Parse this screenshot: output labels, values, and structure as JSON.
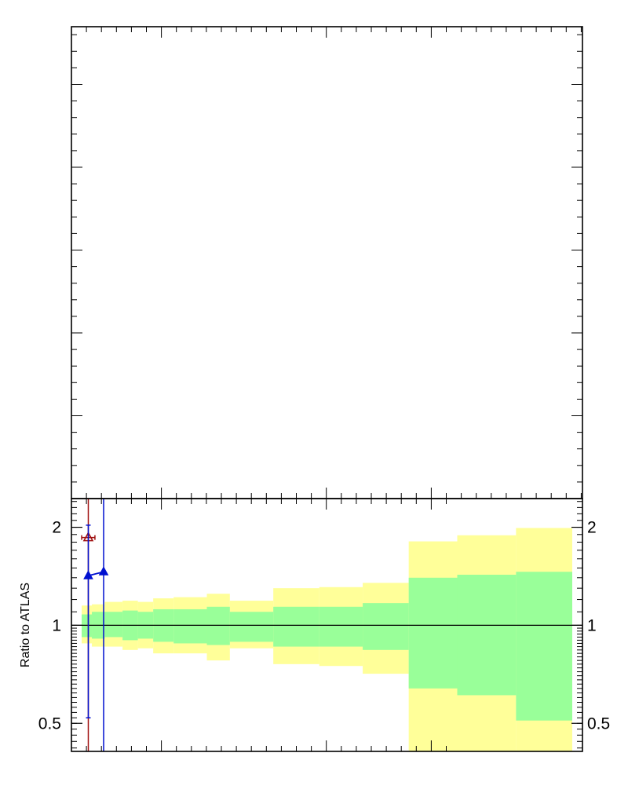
{
  "chart_data": [
    {
      "type": "line",
      "panel": "main",
      "title": "",
      "xlabel": "",
      "ylabel": "",
      "series": []
    },
    {
      "type": "area",
      "panel": "ratio",
      "ylabel": "Ratio to ATLAS",
      "yscale": "log",
      "ylim": [
        0.41,
        2.45
      ],
      "yticks": [
        {
          "v": 0.5,
          "label": "0.5"
        },
        {
          "v": 1,
          "label": "1"
        },
        {
          "v": 2,
          "label": "2"
        }
      ],
      "xlim": [
        0,
        100
      ],
      "reference_line": 1,
      "bins": [
        {
          "x0": 2,
          "x1": 4,
          "inner": [
            0.92,
            1.08
          ],
          "outer": [
            0.88,
            1.15
          ]
        },
        {
          "x0": 4,
          "x1": 6.5,
          "inner": [
            0.91,
            1.1
          ],
          "outer": [
            0.86,
            1.16
          ]
        },
        {
          "x0": 6.5,
          "x1": 10,
          "inner": [
            0.92,
            1.1
          ],
          "outer": [
            0.86,
            1.18
          ]
        },
        {
          "x0": 10,
          "x1": 13,
          "inner": [
            0.9,
            1.11
          ],
          "outer": [
            0.84,
            1.19
          ]
        },
        {
          "x0": 13,
          "x1": 16,
          "inner": [
            0.91,
            1.1
          ],
          "outer": [
            0.85,
            1.18
          ]
        },
        {
          "x0": 16,
          "x1": 20,
          "inner": [
            0.89,
            1.12
          ],
          "outer": [
            0.82,
            1.21
          ]
        },
        {
          "x0": 20,
          "x1": 26.5,
          "inner": [
            0.88,
            1.12
          ],
          "outer": [
            0.82,
            1.22
          ]
        },
        {
          "x0": 26.5,
          "x1": 31,
          "inner": [
            0.87,
            1.14
          ],
          "outer": [
            0.78,
            1.25
          ]
        },
        {
          "x0": 31,
          "x1": 39.5,
          "inner": [
            0.89,
            1.1
          ],
          "outer": [
            0.85,
            1.19
          ]
        },
        {
          "x0": 39.5,
          "x1": 48.5,
          "inner": [
            0.86,
            1.14
          ],
          "outer": [
            0.76,
            1.3
          ]
        },
        {
          "x0": 48.5,
          "x1": 57,
          "inner": [
            0.86,
            1.14
          ],
          "outer": [
            0.75,
            1.31
          ]
        },
        {
          "x0": 57,
          "x1": 66,
          "inner": [
            0.84,
            1.17
          ],
          "outer": [
            0.71,
            1.35
          ]
        },
        {
          "x0": 66,
          "x1": 75.5,
          "inner": [
            0.64,
            1.4
          ],
          "outer": [
            0.4,
            1.81
          ]
        },
        {
          "x0": 75.5,
          "x1": 87,
          "inner": [
            0.61,
            1.43
          ],
          "outer": [
            0.4,
            1.89
          ]
        },
        {
          "x0": 87,
          "x1": 98,
          "inner": [
            0.51,
            1.46
          ],
          "outer": [
            0.4,
            1.99
          ]
        }
      ],
      "points": [
        {
          "marker": "open-triangle",
          "color": "#a01010",
          "x": 3.3,
          "y": 1.86,
          "yerr": [
            0.4,
            2.45
          ],
          "xerr": [
            2.0,
            4.6
          ]
        },
        {
          "marker": "filled-triangle",
          "color": "#0010d0",
          "x": 3.3,
          "y": 1.42,
          "yerr": [
            0.52,
            2.03
          ]
        },
        {
          "marker": "filled-triangle",
          "color": "#0010d0",
          "x": 6.3,
          "y": 1.46,
          "yerr": [
            0.4,
            2.45
          ]
        }
      ],
      "colors": {
        "inner_band": "#99ff99",
        "outer_band": "#ffff99",
        "frame": "#000000"
      }
    }
  ]
}
